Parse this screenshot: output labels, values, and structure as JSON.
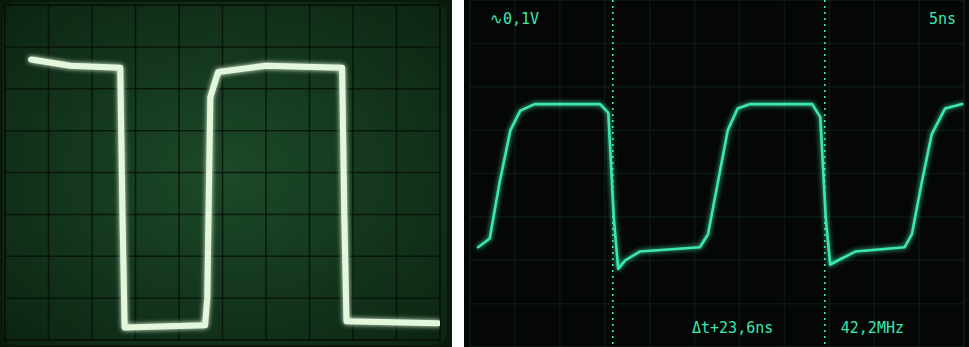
{
  "chart_data": [
    {
      "type": "line",
      "xlim": [
        0,
        10
      ],
      "ylim": [
        0,
        8
      ],
      "xticks": [
        0,
        1,
        2,
        3,
        4,
        5,
        6,
        7,
        8,
        9,
        10
      ],
      "yticks": [
        0,
        1,
        2,
        3,
        4,
        5,
        6,
        7,
        8
      ],
      "grid": true,
      "tick_labels": false,
      "x": [
        0.6,
        1.5,
        2.65,
        2.7,
        2.75,
        4.6,
        4.65,
        4.72,
        4.9,
        6.0,
        7.75,
        7.8,
        7.85,
        9.95
      ],
      "series": [
        {
          "color": "#e2f7dc",
          "values": [
            6.7,
            6.55,
            6.5,
            3.0,
            0.3,
            0.35,
            1.0,
            5.8,
            6.4,
            6.55,
            6.5,
            3.0,
            0.45,
            0.4
          ]
        }
      ]
    },
    {
      "type": "line",
      "xlim": [
        0,
        55
      ],
      "ylim": [
        -0.4,
        0.4
      ],
      "xticks": [
        0,
        5,
        10,
        15,
        20,
        25,
        30,
        35,
        40,
        45,
        50,
        55
      ],
      "yticks": [
        -0.4,
        -0.3,
        -0.2,
        -0.1,
        0,
        0.1,
        0.2,
        0.3,
        0.4
      ],
      "grid": true,
      "tick_labels": false,
      "x": [
        0.9,
        2.2,
        3.3,
        4.5,
        5.6,
        7.2,
        14.5,
        15.4,
        16.0,
        16.5,
        17.3,
        18.9,
        25.6,
        26.5,
        27.6,
        28.7,
        29.8,
        31.2,
        38.1,
        39.0,
        39.6,
        40.1,
        41.0,
        42.9,
        48.4,
        49.2,
        50.3,
        51.4,
        52.9,
        54.8
      ],
      "series": [
        {
          "color": "#3de8b0",
          "values": [
            -0.17,
            -0.15,
            -0.02,
            0.1,
            0.145,
            0.16,
            0.16,
            0.14,
            -0.1,
            -0.22,
            -0.2,
            -0.18,
            -0.17,
            -0.14,
            -0.02,
            0.1,
            0.15,
            0.16,
            0.16,
            0.13,
            -0.1,
            -0.21,
            -0.2,
            -0.18,
            -0.17,
            -0.14,
            -0.02,
            0.09,
            0.15,
            0.16
          ]
        }
      ],
      "cursors": [
        15.9,
        39.5
      ],
      "annotations": [
        "∿0,1V",
        "5ns",
        "Δt+23,6ns",
        "42,2MHz"
      ]
    }
  ]
}
